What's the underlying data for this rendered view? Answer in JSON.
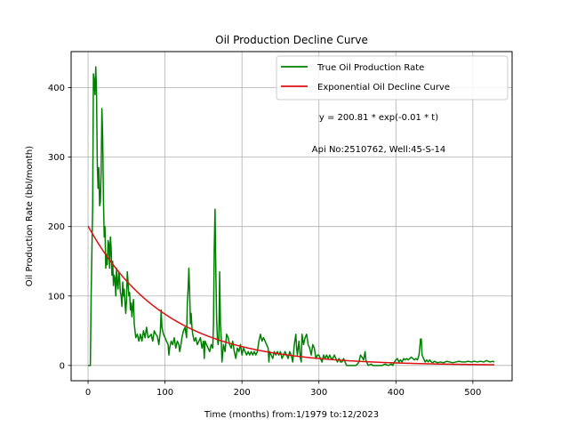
{
  "chart_data": {
    "type": "line",
    "title": "Oil Production Decline Curve",
    "xlabel": "Time (months) from:1/1979 to:12/2023",
    "ylabel": "Oil Production Rate (bbl/month)",
    "xlim": [
      -22,
      551
    ],
    "ylim": [
      -22,
      452
    ],
    "xticks": [
      0,
      100,
      200,
      300,
      400,
      500
    ],
    "yticks": [
      0,
      100,
      200,
      300,
      400
    ],
    "xtick_labels": [
      "0",
      "100",
      "200",
      "300",
      "400",
      "500"
    ],
    "ytick_labels": [
      "0",
      "100",
      "200",
      "300",
      "400"
    ],
    "grid": true,
    "legend_position": "top-right",
    "annotations": [
      "y = 200.81 * exp(-0.01 * t)",
      "Api No:2510762, Well:45-S-14"
    ],
    "series": [
      {
        "name": "True Oil Production Rate",
        "color": "#008000",
        "points": [
          [
            0,
            0
          ],
          [
            3,
            0
          ],
          [
            4,
            100
          ],
          [
            6,
            230
          ],
          [
            7,
            420
          ],
          [
            8,
            410
          ],
          [
            9,
            390
          ],
          [
            10,
            430
          ],
          [
            11,
            395
          ],
          [
            12,
            290
          ],
          [
            13,
            255
          ],
          [
            14,
            285
          ],
          [
            15,
            230
          ],
          [
            16,
            235
          ],
          [
            17,
            280
          ],
          [
            18,
            370
          ],
          [
            19,
            330
          ],
          [
            20,
            240
          ],
          [
            21,
            185
          ],
          [
            22,
            200
          ],
          [
            23,
            140
          ],
          [
            24,
            160
          ],
          [
            25,
            145
          ],
          [
            26,
            180
          ],
          [
            27,
            175
          ],
          [
            28,
            140
          ],
          [
            29,
            185
          ],
          [
            30,
            170
          ],
          [
            31,
            130
          ],
          [
            32,
            150
          ],
          [
            33,
            115
          ],
          [
            34,
            130
          ],
          [
            35,
            125
          ],
          [
            36,
            100
          ],
          [
            37,
            140
          ],
          [
            38,
            118
          ],
          [
            39,
            110
          ],
          [
            40,
            135
          ],
          [
            41,
            125
          ],
          [
            42,
            105
          ],
          [
            43,
            100
          ],
          [
            44,
            85
          ],
          [
            45,
            120
          ],
          [
            46,
            100
          ],
          [
            47,
            110
          ],
          [
            48,
            90
          ],
          [
            49,
            75
          ],
          [
            50,
            95
          ],
          [
            51,
            135
          ],
          [
            52,
            120
          ],
          [
            53,
            100
          ],
          [
            54,
            105
          ],
          [
            55,
            80
          ],
          [
            56,
            90
          ],
          [
            57,
            70
          ],
          [
            58,
            85
          ],
          [
            59,
            95
          ],
          [
            60,
            60
          ],
          [
            62,
            40
          ],
          [
            64,
            45
          ],
          [
            66,
            35
          ],
          [
            68,
            45
          ],
          [
            70,
            35
          ],
          [
            72,
            50
          ],
          [
            74,
            40
          ],
          [
            76,
            55
          ],
          [
            78,
            40
          ],
          [
            80,
            42
          ],
          [
            82,
            45
          ],
          [
            84,
            35
          ],
          [
            86,
            50
          ],
          [
            88,
            45
          ],
          [
            90,
            42
          ],
          [
            92,
            30
          ],
          [
            94,
            50
          ],
          [
            95,
            80
          ],
          [
            96,
            55
          ],
          [
            98,
            45
          ],
          [
            100,
            40
          ],
          [
            102,
            35
          ],
          [
            104,
            30
          ],
          [
            105,
            15
          ],
          [
            106,
            25
          ],
          [
            108,
            35
          ],
          [
            110,
            30
          ],
          [
            112,
            40
          ],
          [
            114,
            25
          ],
          [
            116,
            35
          ],
          [
            118,
            30
          ],
          [
            119,
            20
          ],
          [
            120,
            25
          ],
          [
            122,
            40
          ],
          [
            124,
            50
          ],
          [
            126,
            55
          ],
          [
            128,
            40
          ],
          [
            129,
            90
          ],
          [
            130,
            110
          ],
          [
            131,
            140
          ],
          [
            132,
            105
          ],
          [
            133,
            60
          ],
          [
            134,
            75
          ],
          [
            135,
            55
          ],
          [
            136,
            45
          ],
          [
            137,
            40
          ],
          [
            138,
            35
          ],
          [
            140,
            40
          ],
          [
            142,
            30
          ],
          [
            144,
            35
          ],
          [
            146,
            40
          ],
          [
            148,
            25
          ],
          [
            150,
            35
          ],
          [
            151,
            10
          ],
          [
            152,
            35
          ],
          [
            154,
            30
          ],
          [
            156,
            25
          ],
          [
            158,
            20
          ],
          [
            160,
            30
          ],
          [
            162,
            25
          ],
          [
            163,
            60
          ],
          [
            164,
            170
          ],
          [
            165,
            225
          ],
          [
            166,
            140
          ],
          [
            167,
            70
          ],
          [
            168,
            40
          ],
          [
            169,
            30
          ],
          [
            170,
            40
          ],
          [
            171,
            135
          ],
          [
            172,
            60
          ],
          [
            173,
            40
          ],
          [
            174,
            5
          ],
          [
            176,
            30
          ],
          [
            178,
            20
          ],
          [
            180,
            45
          ],
          [
            182,
            40
          ],
          [
            184,
            30
          ],
          [
            186,
            25
          ],
          [
            188,
            35
          ],
          [
            190,
            20
          ],
          [
            192,
            10
          ],
          [
            194,
            25
          ],
          [
            196,
            20
          ],
          [
            198,
            30
          ],
          [
            200,
            15
          ],
          [
            202,
            25
          ],
          [
            204,
            20
          ],
          [
            206,
            15
          ],
          [
            208,
            20
          ],
          [
            210,
            15
          ],
          [
            212,
            20
          ],
          [
            214,
            15
          ],
          [
            216,
            20
          ],
          [
            218,
            15
          ],
          [
            220,
            20
          ],
          [
            222,
            35
          ],
          [
            224,
            45
          ],
          [
            226,
            35
          ],
          [
            228,
            40
          ],
          [
            230,
            35
          ],
          [
            232,
            30
          ],
          [
            234,
            25
          ],
          [
            235,
            5
          ],
          [
            236,
            20
          ],
          [
            238,
            15
          ],
          [
            240,
            10
          ],
          [
            242,
            20
          ],
          [
            244,
            15
          ],
          [
            246,
            20
          ],
          [
            248,
            15
          ],
          [
            250,
            20
          ],
          [
            252,
            10
          ],
          [
            254,
            15
          ],
          [
            256,
            20
          ],
          [
            258,
            15
          ],
          [
            260,
            10
          ],
          [
            262,
            20
          ],
          [
            264,
            15
          ],
          [
            266,
            5
          ],
          [
            268,
            30
          ],
          [
            270,
            45
          ],
          [
            271,
            25
          ],
          [
            272,
            15
          ],
          [
            274,
            35
          ],
          [
            276,
            10
          ],
          [
            277,
            5
          ],
          [
            278,
            45
          ],
          [
            280,
            30
          ],
          [
            282,
            40
          ],
          [
            284,
            45
          ],
          [
            286,
            30
          ],
          [
            288,
            25
          ],
          [
            290,
            15
          ],
          [
            292,
            30
          ],
          [
            294,
            25
          ],
          [
            296,
            10
          ],
          [
            298,
            15
          ],
          [
            300,
            15
          ],
          [
            302,
            10
          ],
          [
            304,
            5
          ],
          [
            306,
            15
          ],
          [
            308,
            10
          ],
          [
            310,
            15
          ],
          [
            312,
            10
          ],
          [
            314,
            15
          ],
          [
            316,
            10
          ],
          [
            318,
            10
          ],
          [
            320,
            15
          ],
          [
            322,
            10
          ],
          [
            324,
            5
          ],
          [
            326,
            10
          ],
          [
            328,
            5
          ],
          [
            330,
            5
          ],
          [
            332,
            10
          ],
          [
            334,
            5
          ],
          [
            336,
            0
          ],
          [
            340,
            0
          ],
          [
            344,
            0
          ],
          [
            348,
            0
          ],
          [
            350,
            2
          ],
          [
            352,
            5
          ],
          [
            354,
            15
          ],
          [
            356,
            12
          ],
          [
            358,
            8
          ],
          [
            360,
            20
          ],
          [
            361,
            8
          ],
          [
            362,
            5
          ],
          [
            364,
            0
          ],
          [
            368,
            2
          ],
          [
            370,
            0
          ],
          [
            374,
            0
          ],
          [
            378,
            0
          ],
          [
            382,
            0
          ],
          [
            386,
            2
          ],
          [
            390,
            0
          ],
          [
            394,
            2
          ],
          [
            396,
            0
          ],
          [
            398,
            5
          ],
          [
            400,
            8
          ],
          [
            402,
            10
          ],
          [
            404,
            5
          ],
          [
            406,
            8
          ],
          [
            408,
            5
          ],
          [
            410,
            10
          ],
          [
            412,
            8
          ],
          [
            414,
            10
          ],
          [
            416,
            8
          ],
          [
            418,
            10
          ],
          [
            420,
            12
          ],
          [
            422,
            10
          ],
          [
            424,
            8
          ],
          [
            426,
            10
          ],
          [
            428,
            8
          ],
          [
            430,
            15
          ],
          [
            431,
            25
          ],
          [
            432,
            38
          ],
          [
            433,
            38
          ],
          [
            434,
            15
          ],
          [
            436,
            10
          ],
          [
            438,
            5
          ],
          [
            440,
            8
          ],
          [
            442,
            5
          ],
          [
            444,
            8
          ],
          [
            446,
            5
          ],
          [
            448,
            4
          ],
          [
            450,
            6
          ],
          [
            454,
            4
          ],
          [
            458,
            5
          ],
          [
            462,
            4
          ],
          [
            466,
            6
          ],
          [
            470,
            5
          ],
          [
            474,
            4
          ],
          [
            478,
            5
          ],
          [
            482,
            6
          ],
          [
            486,
            5
          ],
          [
            490,
            5
          ],
          [
            494,
            6
          ],
          [
            498,
            5
          ],
          [
            502,
            6
          ],
          [
            506,
            5
          ],
          [
            510,
            6
          ],
          [
            514,
            5
          ],
          [
            518,
            7
          ],
          [
            522,
            5
          ],
          [
            526,
            6
          ],
          [
            528,
            5
          ]
        ]
      },
      {
        "name": "Exponential Oil Decline Curve",
        "color": "#dd1111",
        "function": {
          "a": 200.81,
          "b": -0.01,
          "x_start": 0,
          "x_end": 528
        }
      }
    ]
  }
}
